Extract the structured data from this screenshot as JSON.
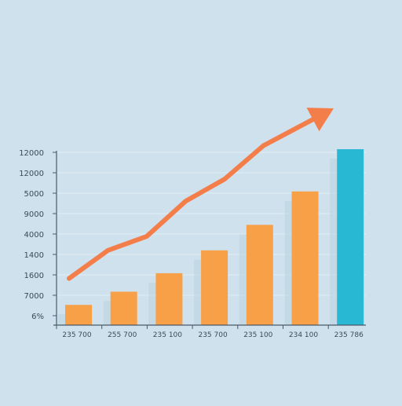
{
  "colors": {
    "background": "#cfe1ec",
    "bar": "#f8a048",
    "bar_highlight": "#29b8d4",
    "bar_shadow": "#bcd4e2",
    "trend_line": "#f47e4a",
    "axis": "#4a5a66",
    "grid": "#e3eef5"
  },
  "chart_data": {
    "type": "bar",
    "y_tick_labels": [
      "12000",
      "12000",
      "5000",
      "9000",
      "4000",
      "1400",
      "1600",
      "7000",
      "6%"
    ],
    "categories": [
      "235 700",
      "255 700",
      "235 100",
      "235 700",
      "235 100",
      "234 100",
      "235 786"
    ],
    "bar_levels": [
      0.115,
      0.19,
      0.295,
      0.425,
      0.57,
      0.76,
      1.0
    ],
    "highlighted_index": 6,
    "trend_line_levels": [
      0.265,
      0.425,
      0.505,
      0.705,
      0.83,
      1.02
    ],
    "arrow": true,
    "grid": true,
    "legend": "none"
  }
}
